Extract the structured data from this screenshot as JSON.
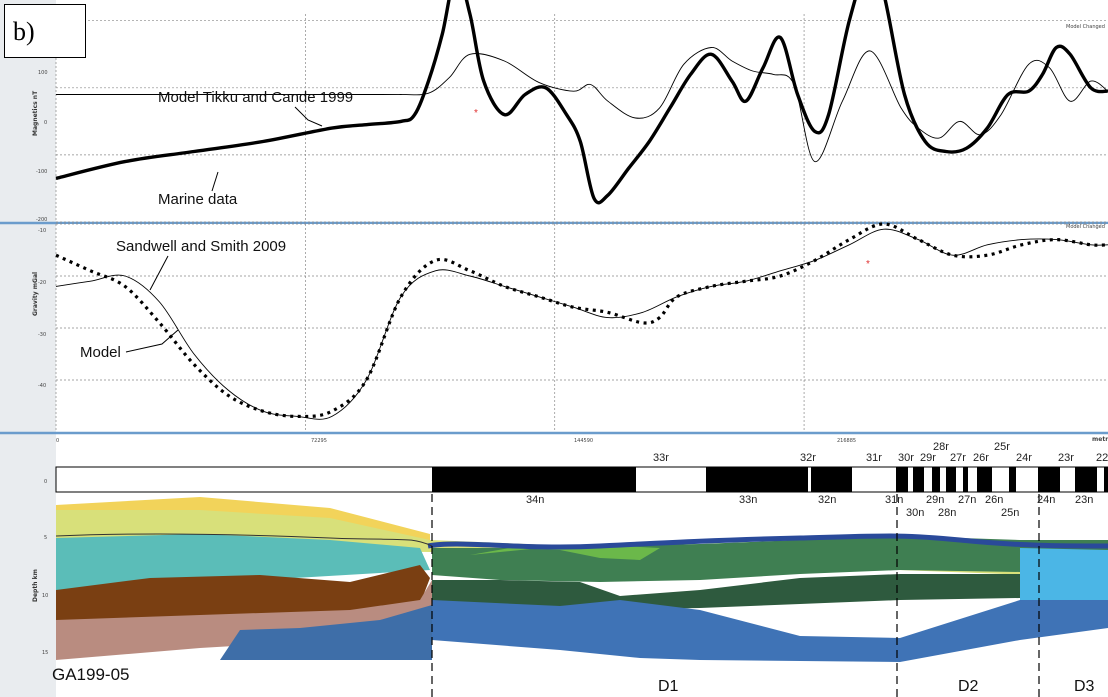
{
  "panel_label": "b)",
  "chart_data": [
    {
      "type": "line",
      "panel": "magnetics",
      "ylabel": "Magnetics",
      "yunit": "nT",
      "corner_label": "Model Changed",
      "yticks": [
        "100",
        "0",
        "-100",
        "-200"
      ],
      "ylim": [
        -200,
        110
      ],
      "xlim": [
        0,
        305000
      ],
      "series": [
        {
          "name": "Model Tikku and Cande 1999",
          "style": "thin",
          "x": [
            0,
            90000,
            100000,
            108000,
            114000,
            120000,
            130000,
            140000,
            150000,
            155000,
            160000,
            168000,
            175000,
            182000,
            190000,
            196000,
            202000,
            208000,
            214000,
            220000,
            228000,
            236000,
            245000,
            250000,
            256000,
            262000,
            268000,
            274000,
            282000,
            288000,
            294000,
            300000,
            305000
          ],
          "y": [
            -10,
            -10,
            -10,
            -8,
            15,
            50,
            40,
            8,
            -5,
            5,
            -20,
            -45,
            -30,
            35,
            60,
            40,
            25,
            20,
            5,
            -110,
            -20,
            55,
            -30,
            -60,
            -75,
            -50,
            -70,
            -40,
            35,
            30,
            -20,
            10,
            -5
          ]
        },
        {
          "name": "Marine data",
          "style": "thick",
          "x": [
            0,
            20000,
            40000,
            60000,
            80000,
            90000,
            100000,
            104000,
            108000,
            112000,
            116000,
            120000,
            124000,
            130000,
            136000,
            142000,
            148000,
            152000,
            156000,
            160000,
            166000,
            172000,
            178000,
            184000,
            190000,
            196000,
            200000,
            205000,
            210000,
            215000,
            220000,
            224000,
            230000,
            236000,
            240000,
            246000,
            252000,
            258000,
            264000,
            270000,
            276000,
            282000,
            286000,
            290000,
            294000,
            300000,
            305000
          ],
          "y": [
            -135,
            -110,
            -95,
            -80,
            -60,
            -55,
            -50,
            -40,
            10,
            80,
            170,
            110,
            10,
            -40,
            -10,
            0,
            -40,
            -80,
            -165,
            -160,
            -120,
            -80,
            -30,
            20,
            50,
            10,
            -20,
            30,
            75,
            -10,
            -65,
            -40,
            100,
            190,
            140,
            -10,
            -80,
            -95,
            -90,
            -60,
            -10,
            -5,
            20,
            60,
            50,
            0,
            -5
          ]
        }
      ],
      "annotations": [
        "Model Tikku and Cande 1999",
        "Marine data"
      ]
    },
    {
      "type": "line",
      "panel": "gravity",
      "ylabel": "Gravity",
      "yunit": "mGal",
      "corner_label": "Model Changed",
      "yticks": [
        "-10",
        "-20",
        "-30",
        "-40"
      ],
      "ylim": [
        -50,
        -10
      ],
      "xlim": [
        0,
        305000
      ],
      "series": [
        {
          "name": "Sandwell and Smith 2009",
          "style": "thin",
          "x": [
            0,
            10000,
            20000,
            30000,
            40000,
            50000,
            60000,
            70000,
            80000,
            90000,
            100000,
            110000,
            120000,
            130000,
            140000,
            150000,
            160000,
            170000,
            180000,
            190000,
            200000,
            210000,
            220000,
            230000,
            240000,
            250000,
            260000,
            270000,
            280000,
            290000,
            300000,
            305000
          ],
          "y": [
            -22,
            -21,
            -20,
            -25,
            -35,
            -42,
            -46,
            -47,
            -47,
            -40,
            -24,
            -19,
            -20,
            -22,
            -24,
            -26,
            -28,
            -27,
            -24,
            -22,
            -21,
            -19,
            -17,
            -14,
            -11,
            -13,
            -16,
            -14,
            -13,
            -13,
            -14,
            -14
          ]
        },
        {
          "name": "Model",
          "style": "dotted",
          "x": [
            0,
            10000,
            20000,
            30000,
            40000,
            50000,
            60000,
            70000,
            80000,
            90000,
            100000,
            110000,
            120000,
            130000,
            140000,
            150000,
            160000,
            170000,
            175000,
            180000,
            190000,
            200000,
            210000,
            220000,
            230000,
            240000,
            250000,
            260000,
            270000,
            280000,
            290000,
            300000,
            305000
          ],
          "y": [
            -16,
            -19,
            -22,
            -29,
            -37,
            -43,
            -46,
            -47,
            -46,
            -40,
            -24,
            -17,
            -19,
            -22,
            -24,
            -26,
            -27,
            -29,
            -28,
            -24,
            -22,
            -21,
            -20,
            -17,
            -13,
            -10,
            -13,
            -16,
            -16,
            -14,
            -13,
            -14,
            -14
          ]
        }
      ],
      "annotations": [
        "Sandwell and Smith 2009",
        "Model"
      ]
    },
    {
      "type": "other",
      "panel": "depth",
      "ylabel": "Depth",
      "yunit": "km",
      "xunit": "metres",
      "xticks": [
        "0",
        "72295",
        "144590",
        "216885"
      ],
      "yticks": [
        "0",
        "5",
        "10",
        "15"
      ],
      "profile_name": "GA199-05",
      "domains": [
        "D1",
        "D2",
        "D3"
      ],
      "chrons_top": [
        "33r",
        "32r",
        "31r",
        "30r",
        "29r",
        "28r",
        "27r",
        "26r",
        "25r",
        "24r",
        "23r",
        "22"
      ],
      "chrons_bottom": [
        "34n",
        "33n",
        "32n",
        "31n",
        "30n",
        "29n",
        "28n",
        "27n",
        "26n",
        "25n",
        "24n",
        "23n"
      ],
      "layer_colors": [
        "#f2d35a",
        "#d8e07a",
        "#5bbdb8",
        "#7a3f12",
        "#b98c80",
        "#3e6ea8",
        "#3f7f52",
        "#6bb84a",
        "#2e5a3e",
        "#4bb6e6",
        "#3f73b6"
      ]
    }
  ]
}
